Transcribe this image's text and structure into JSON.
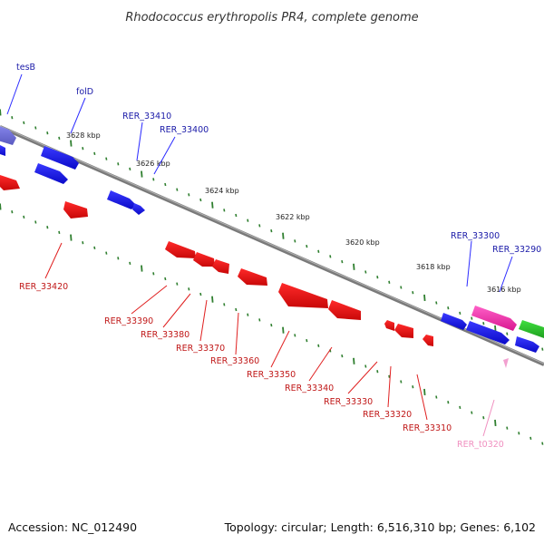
{
  "title": "Rhodococcus erythropolis PR4, complete genome",
  "footer": {
    "accession": "Accession: NC_012490",
    "summary": "Topology: circular; Length: 6,516,310 bp; Genes: 6,102"
  },
  "colors": {
    "backbone": "#808080",
    "tick": "#2f7f2f",
    "forward_gene": "#1010e0",
    "reverse_gene": "#e01010",
    "forward_label": "#1a1aa8",
    "reverse_label": "#c01818",
    "trna_gene": "#f040b0",
    "trna_label": "#f090c0",
    "other_gene": "#30c030",
    "purple_gene": "#7070d8"
  },
  "scale": [
    {
      "label": "3628 kbp"
    },
    {
      "label": "3626 kbp"
    },
    {
      "label": "3624 kbp"
    },
    {
      "label": "3622 kbp"
    },
    {
      "label": "3620 kbp"
    },
    {
      "label": "3618 kbp"
    },
    {
      "label": "3616 kbp"
    }
  ],
  "forward_labels": [
    "tesB",
    "folD",
    "RER_33410",
    "RER_33400",
    "RER_33300",
    "RER_33290"
  ],
  "reverse_labels": [
    "RER_33420",
    "RER_33390",
    "RER_33380",
    "RER_33370",
    "RER_33360",
    "RER_33350",
    "RER_33340",
    "RER_33330",
    "RER_33320",
    "RER_33310"
  ],
  "trna_labels": [
    "RER_t0320"
  ]
}
